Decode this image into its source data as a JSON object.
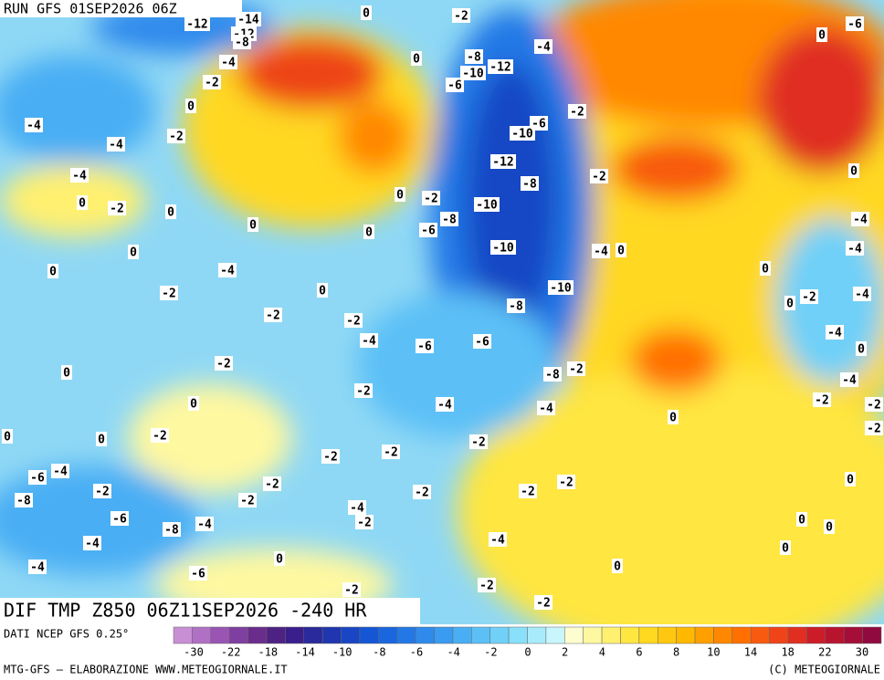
{
  "run_label": "RUN GFS 01SEP2026 06Z",
  "map_title": "DIF TMP Z850 06Z11SEP2026 -240 HR",
  "source": "DATI NCEP GFS 0.25°",
  "credit_left": "MTG-GFS — ELABORAZIONE WWW.METEOGIORNALE.IT",
  "credit_right": "(C) METEOGIORNALE",
  "colorbar": {
    "colors": [
      "#c88fd4",
      "#b070c4",
      "#9a55b4",
      "#7f3fa0",
      "#6a2d8c",
      "#4e2283",
      "#3a1f8c",
      "#2a2a9c",
      "#1f36b0",
      "#1846c4",
      "#1556d4",
      "#1a66de",
      "#2478e6",
      "#2f8aec",
      "#3a9cf0",
      "#4aaef4",
      "#5cc0f6",
      "#70d0f8",
      "#88e0fa",
      "#a8ecfb",
      "#c8f6fc",
      "#fdfdd0",
      "#fef8a0",
      "#fff070",
      "#ffe640",
      "#ffd820",
      "#ffc810",
      "#ffb800",
      "#ffa000",
      "#ff8800",
      "#ff7000",
      "#f85a10",
      "#ee4418",
      "#e02e20",
      "#cc1c28",
      "#b81430",
      "#a40e38",
      "#900a40"
    ],
    "ticks": [
      -30,
      -22,
      -18,
      -14,
      -10,
      -8,
      -6,
      -4,
      -2,
      0,
      2,
      4,
      6,
      8,
      10,
      14,
      18,
      22,
      30
    ]
  },
  "contour_labels": [
    -12,
    -14,
    -12,
    -8,
    -4,
    -2,
    0,
    -2,
    -4,
    -8,
    -10,
    -12,
    -6,
    0,
    0,
    -4,
    -4,
    -2,
    -4,
    0,
    -2,
    0,
    0,
    -6,
    -10,
    -2,
    -12,
    -8,
    -2,
    -2,
    -8,
    -10,
    -6,
    0,
    0,
    0,
    -4,
    -10,
    -4,
    0,
    -10,
    -8,
    -2,
    -2,
    -2,
    -4,
    -6,
    -6,
    -2,
    0,
    -8,
    -2,
    -2,
    0,
    -4,
    -4,
    0,
    0,
    0,
    -2,
    -2,
    -2,
    -2,
    -6,
    -4,
    -2,
    -8,
    -2,
    -2,
    -2,
    -2,
    -2,
    -4,
    -2,
    -6,
    -8,
    -4,
    -4,
    -4,
    0,
    -4,
    -6,
    0,
    -2,
    -2,
    -2,
    0,
    -2,
    -4,
    0,
    -4,
    -4,
    -4,
    0,
    -4,
    -2,
    -2,
    -2,
    0,
    0,
    0,
    0,
    -6,
    0,
    0,
    0,
    0
  ]
}
